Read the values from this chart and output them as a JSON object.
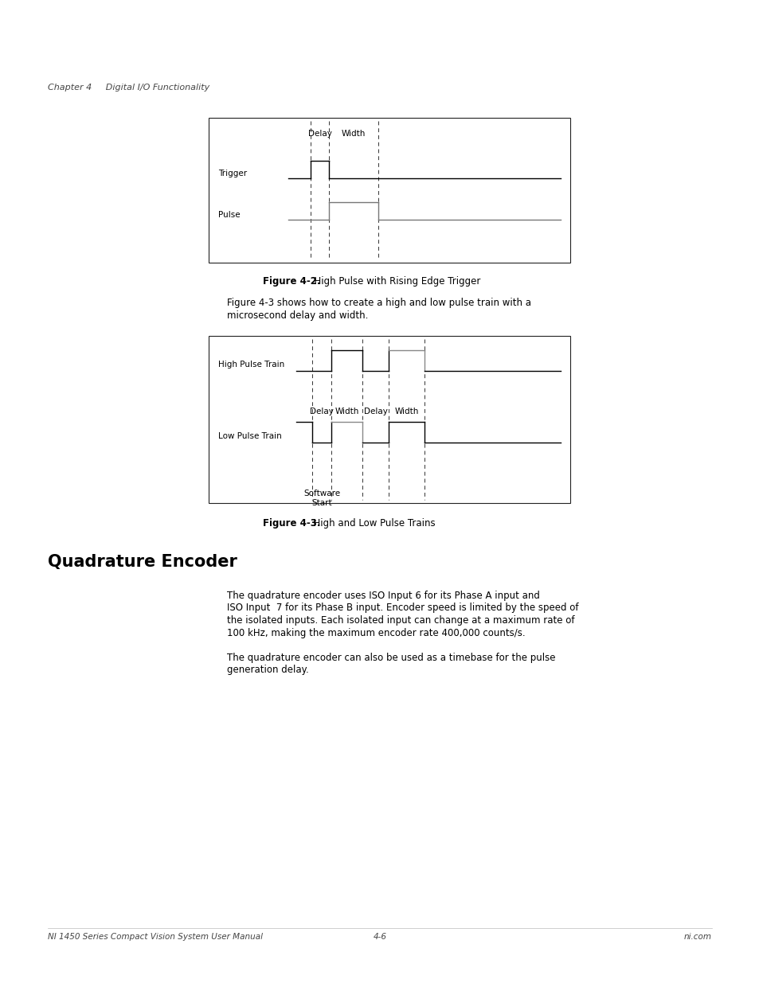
{
  "page_bg": "#ffffff",
  "header_text": "Chapter 4     Digital I/O Functionality",
  "footer_left": "NI 1450 Series Compact Vision System User Manual",
  "footer_center": "4-6",
  "footer_right": "ni.com",
  "fig42_caption_bold": "Figure 4-2.",
  "fig42_caption_rest": "  High Pulse with Rising Edge Trigger",
  "fig43_caption_bold": "Figure 4-3.",
  "fig43_caption_rest": "  High and Low Pulse Trains",
  "section_title": "Quadrature Encoder",
  "para1_line1": "The quadrature encoder uses ISO Input 6 for its Phase A input and",
  "para1_line2": "ISO Input  7 for its Phase B input. Encoder speed is limited by the speed of",
  "para1_line3": "the isolated inputs. Each isolated input can change at a maximum rate of",
  "para1_line4": "100 kHz, making the maximum encoder rate 400,000 counts/s.",
  "para2_line1": "The quadrature encoder can also be used as a timebase for the pulse",
  "para2_line2": "generation delay.",
  "intro_line1": "Figure 4-3 shows how to create a high and low pulse train with a",
  "intro_line2": "microsecond delay and width."
}
